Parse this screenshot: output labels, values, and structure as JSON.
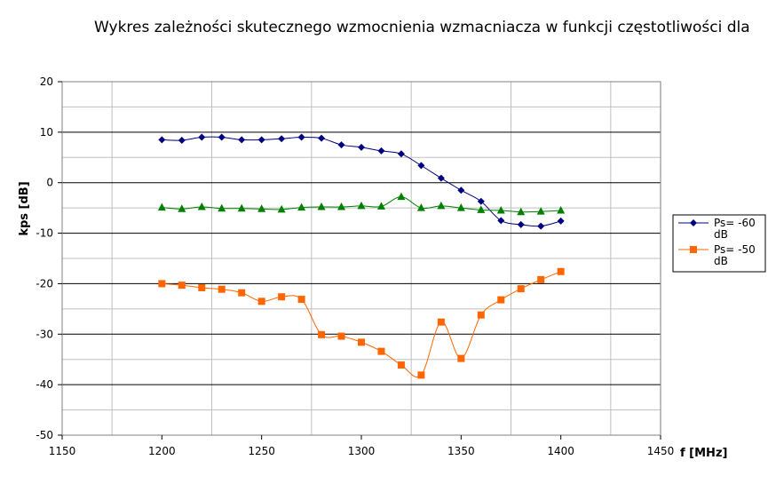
{
  "chart_data": {
    "type": "line",
    "title": "Wykres zależności skutecznego wzmocnienia wzmacniacza w funkcji częstotliwości dla",
    "xlabel": "f [MHz]",
    "ylabel": "kps [dB]",
    "xlim": [
      1150,
      1450
    ],
    "ylim": [
      -50,
      20
    ],
    "x_ticks": [
      "1150",
      "1200",
      "1250",
      "1300",
      "1350",
      "1400",
      "1450"
    ],
    "y_ticks": [
      "20",
      "10",
      "0",
      "-10",
      "-20",
      "-30",
      "-40",
      "-50"
    ],
    "grid": "major horizontal and minor grid",
    "legend_position": "right",
    "x": [
      1200,
      1210,
      1220,
      1230,
      1240,
      1250,
      1260,
      1270,
      1280,
      1290,
      1300,
      1310,
      1320,
      1330,
      1340,
      1350,
      1360,
      1370,
      1380,
      1390,
      1400
    ],
    "series": [
      {
        "name": "Ps= -60 dB",
        "legend_lines": [
          "Ps= -60",
          "dB"
        ],
        "color": "#000080",
        "marker": "diamond",
        "values": [
          8.5,
          8.4,
          9.0,
          9.0,
          8.5,
          8.5,
          8.7,
          9.0,
          8.8,
          7.5,
          7.0,
          6.3,
          5.7,
          3.4,
          0.9,
          -1.5,
          -3.7,
          -7.5,
          -8.3,
          -8.6,
          -7.6
        ]
      },
      {
        "name": "Ps= -50 dB",
        "legend_lines": [
          "Ps= -50",
          "dB"
        ],
        "color": "#ff6600",
        "marker": "square",
        "values": [
          -20.0,
          -20.3,
          -20.8,
          -21.1,
          -21.8,
          -23.5,
          -22.6,
          -23.1,
          -30.1,
          -30.4,
          -31.6,
          -33.4,
          -36.1,
          -38.1,
          -27.6,
          -34.8,
          -26.2,
          -23.2,
          -21.0,
          -19.2,
          -17.6
        ]
      },
      {
        "name": "",
        "color": "#008000",
        "marker": "triangle",
        "values": [
          -4.9,
          -5.2,
          -4.8,
          -5.1,
          -5.1,
          -5.2,
          -5.3,
          -4.9,
          -4.8,
          -4.8,
          -4.6,
          -4.7,
          -2.8,
          -5.0,
          -4.6,
          -5.0,
          -5.4,
          -5.5,
          -5.8,
          -5.7,
          -5.5
        ]
      }
    ]
  }
}
